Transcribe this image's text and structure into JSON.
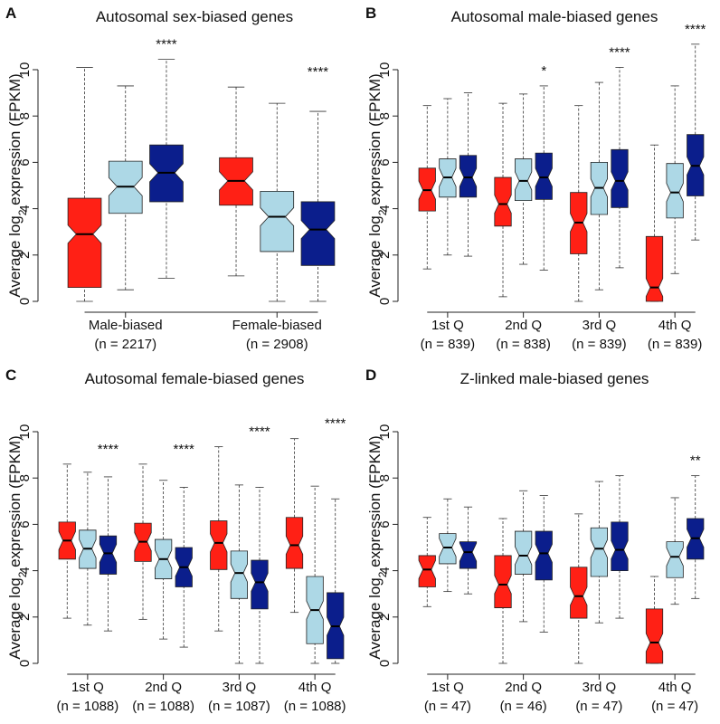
{
  "chart_data": [
    {
      "type": "box",
      "panel_label": "A",
      "title": "Autosomal sex-biased genes",
      "ylabel": [
        "Average log",
        "2",
        " expression (FPKM)"
      ],
      "ylim": [
        0,
        10
      ],
      "yticks": [
        0,
        2,
        4,
        6,
        8,
        10
      ],
      "categories": [
        "Male-biased",
        "Female-biased"
      ],
      "category_counts": [
        "(n = 2217)",
        "(n = 2908)"
      ],
      "annotations": [
        "****",
        "****"
      ],
      "series": [
        {
          "color": "#ff2015",
          "values": [
            [
              0,
              0.6,
              2.9,
              4.45,
              10.1
            ],
            [
              1.1,
              4.15,
              5.2,
              6.2,
              9.25
            ]
          ]
        },
        {
          "color": "#add8e6",
          "values": [
            [
              0.5,
              3.8,
              4.95,
              6.05,
              9.3
            ],
            [
              0,
              2.15,
              3.65,
              4.75,
              8.55
            ]
          ]
        },
        {
          "color": "#0b1e8c",
          "values": [
            [
              1.0,
              4.3,
              5.55,
              6.75,
              10.45
            ],
            [
              0,
              1.55,
              3.1,
              4.3,
              8.2
            ]
          ]
        }
      ]
    },
    {
      "type": "box",
      "panel_label": "B",
      "title": "Autosomal male-biased genes",
      "ylabel": [
        "Average log",
        "2",
        " expression (FPKM)"
      ],
      "ylim": [
        0,
        10
      ],
      "yticks": [
        0,
        2,
        4,
        6,
        8,
        10
      ],
      "categories": [
        "1st Q",
        "2nd Q",
        "3rd Q",
        "4th Q"
      ],
      "category_counts": [
        "(n = 839)",
        "(n = 838)",
        "(n = 839)",
        "(n = 839)"
      ],
      "annotations": [
        null,
        "*",
        "****",
        "****"
      ],
      "series": [
        {
          "color": "#ff2015",
          "values": [
            [
              1.4,
              3.9,
              4.8,
              5.75,
              8.45
            ],
            [
              0.2,
              3.25,
              4.2,
              5.35,
              8.55
            ],
            [
              0,
              2.05,
              3.4,
              4.7,
              8.45
            ],
            [
              0,
              0,
              0.6,
              2.8,
              6.75
            ]
          ]
        },
        {
          "color": "#add8e6",
          "values": [
            [
              2.0,
              4.5,
              5.35,
              6.15,
              8.75
            ],
            [
              1.6,
              4.35,
              5.2,
              6.15,
              8.95
            ],
            [
              0.5,
              3.75,
              4.9,
              6.0,
              9.45
            ],
            [
              1.2,
              3.6,
              4.7,
              5.95,
              9.3
            ]
          ]
        },
        {
          "color": "#0b1e8c",
          "values": [
            [
              1.95,
              4.5,
              5.35,
              6.3,
              9.0
            ],
            [
              1.35,
              4.4,
              5.35,
              6.4,
              9.3
            ],
            [
              1.45,
              4.05,
              5.2,
              6.55,
              10.1
            ],
            [
              2.65,
              4.55,
              5.85,
              7.2,
              11.1
            ]
          ]
        }
      ]
    },
    {
      "type": "box",
      "panel_label": "C",
      "title": "Autosomal female-biased genes",
      "ylabel": [
        "Average log",
        "2",
        " expression (FPKM)"
      ],
      "ylim": [
        0,
        10
      ],
      "yticks": [
        0,
        2,
        4,
        6,
        8,
        10
      ],
      "categories": [
        "1st Q",
        "2nd Q",
        "3rd Q",
        "4th Q"
      ],
      "category_counts": [
        "(n = 1088)",
        "(n = 1088)",
        "(n = 1087)",
        "(n = 1088)"
      ],
      "annotations": [
        "****",
        "****",
        "****",
        "****"
      ],
      "series": [
        {
          "color": "#ff2015",
          "values": [
            [
              1.95,
              4.5,
              5.3,
              6.1,
              8.6
            ],
            [
              1.9,
              4.4,
              5.25,
              6.05,
              8.6
            ],
            [
              1.4,
              4.05,
              5.2,
              6.15,
              9.35
            ],
            [
              2.2,
              4.1,
              5.1,
              6.3,
              9.7
            ]
          ]
        },
        {
          "color": "#add8e6",
          "values": [
            [
              1.65,
              4.1,
              4.95,
              5.75,
              8.25
            ],
            [
              1.05,
              3.65,
              4.5,
              5.35,
              7.9
            ],
            [
              0,
              2.8,
              3.9,
              4.85,
              7.7
            ],
            [
              0,
              0.85,
              2.3,
              3.75,
              7.65
            ]
          ]
        },
        {
          "color": "#0b1e8c",
          "values": [
            [
              1.4,
              3.85,
              4.75,
              5.5,
              8.05
            ],
            [
              0.7,
              3.3,
              4.15,
              5.0,
              7.6
            ],
            [
              0,
              2.35,
              3.5,
              4.45,
              7.6
            ],
            [
              0,
              0.2,
              1.6,
              3.05,
              7.1
            ]
          ]
        }
      ]
    },
    {
      "type": "box",
      "panel_label": "D",
      "title": "Z-linked male-biased genes",
      "ylabel": [
        "Average log",
        "2",
        " expression (FPKM)"
      ],
      "ylim": [
        0,
        10
      ],
      "yticks": [
        0,
        2,
        4,
        6,
        8,
        10
      ],
      "categories": [
        "1st Q",
        "2nd Q",
        "3rd Q",
        "4th Q"
      ],
      "category_counts": [
        "(n = 47)",
        "(n = 46)",
        "(n = 47)",
        "(n = 47)"
      ],
      "annotations": [
        null,
        null,
        null,
        "**"
      ],
      "series": [
        {
          "color": "#ff2015",
          "values": [
            [
              2.45,
              3.3,
              4.05,
              4.65,
              6.3
            ],
            [
              0,
              2.4,
              3.4,
              4.65,
              6.25
            ],
            [
              0,
              1.95,
              2.9,
              4.15,
              6.45
            ],
            [
              0,
              0,
              0.9,
              2.35,
              3.75
            ]
          ]
        },
        {
          "color": "#add8e6",
          "values": [
            [
              3.1,
              4.3,
              5.0,
              5.6,
              7.1
            ],
            [
              1.8,
              3.85,
              4.65,
              5.7,
              7.45
            ],
            [
              1.75,
              3.75,
              4.95,
              5.85,
              7.85
            ],
            [
              2.55,
              3.7,
              4.6,
              5.25,
              7.15
            ]
          ]
        },
        {
          "color": "#0b1e8c",
          "values": [
            [
              3.0,
              4.1,
              4.8,
              5.25,
              6.75
            ],
            [
              1.35,
              3.6,
              4.75,
              5.7,
              7.25
            ],
            [
              1.95,
              4.0,
              4.9,
              6.1,
              8.1
            ],
            [
              2.8,
              4.5,
              5.4,
              6.25,
              8.1
            ]
          ]
        }
      ]
    }
  ]
}
